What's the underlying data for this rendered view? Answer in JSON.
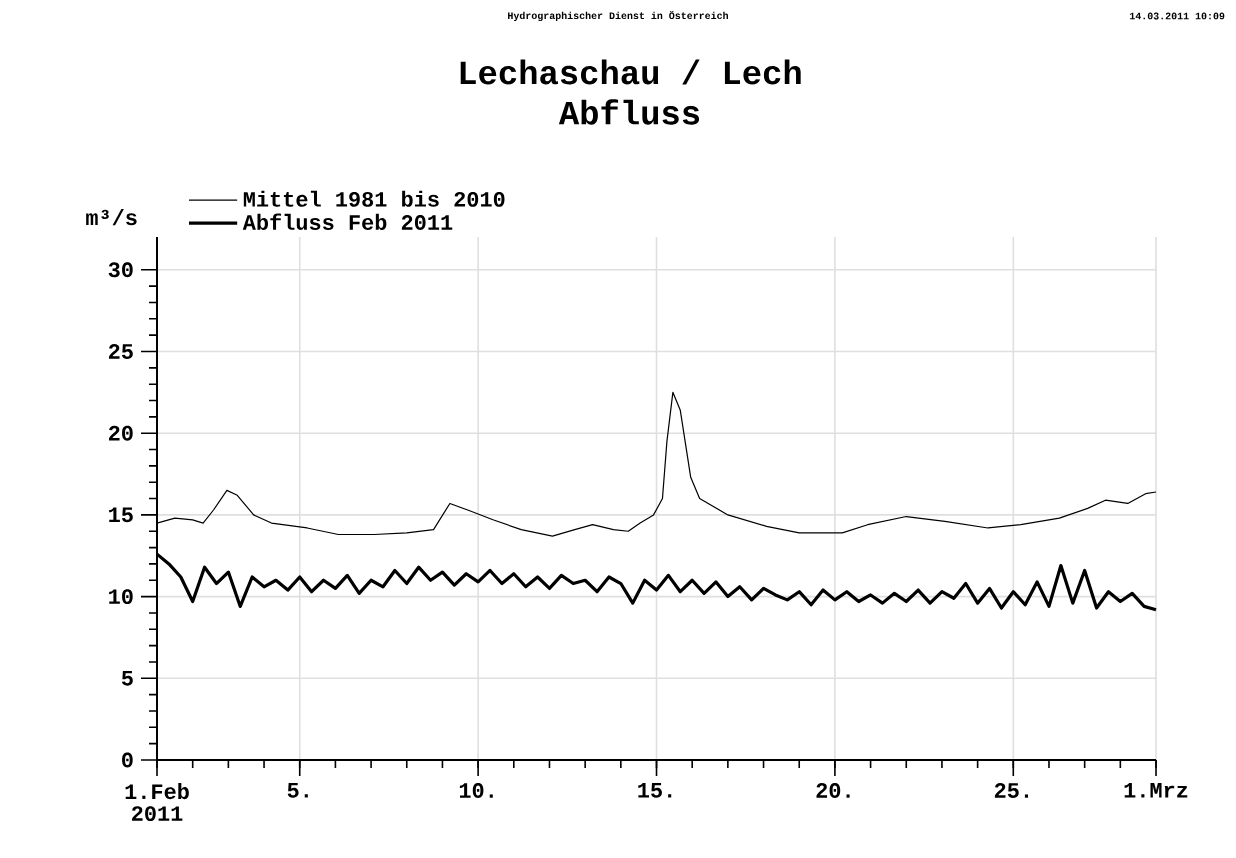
{
  "chart_data": {
    "type": "line",
    "title": "Lechaschau / Lech",
    "subtitle": "Abfluss",
    "ylabel": "m³/s",
    "annotations": [
      "Hydrographischer Dienst in Österreich",
      "14.03.2011 10:09"
    ],
    "xlim": [
      "2011-02-01",
      "2011-03-01"
    ],
    "xticks": [
      {
        "value": "2011-02-01",
        "label": "1.Feb 2011"
      },
      {
        "value": "2011-02-05",
        "label": "5."
      },
      {
        "value": "2011-02-10",
        "label": "10."
      },
      {
        "value": "2011-02-15",
        "label": "15."
      },
      {
        "value": "2011-02-20",
        "label": "20."
      },
      {
        "value": "2011-02-25",
        "label": "25."
      },
      {
        "value": "2011-03-01",
        "label": "1.Mrz"
      }
    ],
    "ylim": [
      0,
      32
    ],
    "yticks": [
      0,
      5,
      10,
      15,
      20,
      25,
      30
    ],
    "grid": true,
    "legend": "top left",
    "marker": "none",
    "line_style": "solid",
    "series": [
      {
        "name": "Mittel 1981 bis 2010",
        "color": "#000000",
        "x": [
          "2011-02-01T00:00",
          "2011-02-01T12:00",
          "2011-02-02T00:00",
          "2011-02-02T07:00",
          "2011-02-02T14:00",
          "2011-02-02T23:00",
          "2011-02-03T06:00",
          "2011-02-03T17:00",
          "2011-02-04T05:00",
          "2011-02-05T05:00",
          "2011-02-06T02:00",
          "2011-02-07T02:00",
          "2011-02-08T00:00",
          "2011-02-08T18:00",
          "2011-02-09T05:00",
          "2011-02-09T17:00",
          "2011-02-10T10:00",
          "2011-02-11T05:00",
          "2011-02-12T02:00",
          "2011-02-12T17:00",
          "2011-02-13T05:00",
          "2011-02-13T19:00",
          "2011-02-14T05:00",
          "2011-02-14T13:00",
          "2011-02-14T22:00",
          "2011-02-15T04:00",
          "2011-02-15T07:00",
          "2011-02-15T11:00",
          "2011-02-15T16:00",
          "2011-02-15T23:00",
          "2011-02-16T05:00",
          "2011-02-17T00:00",
          "2011-02-18T02:00",
          "2011-02-19T00:00",
          "2011-02-20T05:00",
          "2011-02-20T22:00",
          "2011-02-22T00:00",
          "2011-02-23T02:00",
          "2011-02-24T07:00",
          "2011-02-25T05:00",
          "2011-02-26T07:00",
          "2011-02-27T02:00",
          "2011-02-27T14:00",
          "2011-02-28T05:00",
          "2011-02-28T17:00",
          "2011-03-01T00:00"
        ],
        "values": [
          14.5,
          14.8,
          14.7,
          14.5,
          15.3,
          16.5,
          16.2,
          15.0,
          14.5,
          14.2,
          13.8,
          13.8,
          13.9,
          14.1,
          15.7,
          15.3,
          14.7,
          14.1,
          13.7,
          14.1,
          14.4,
          14.1,
          14.0,
          14.5,
          15.0,
          16.0,
          19.5,
          22.5,
          21.4,
          17.3,
          16.0,
          15.0,
          14.3,
          13.9,
          13.9,
          14.4,
          14.9,
          14.6,
          14.2,
          14.4,
          14.8,
          15.4,
          15.9,
          15.7,
          16.3,
          16.4
        ]
      },
      {
        "name": "Abfluss Feb 2011",
        "color": "#000000",
        "x": [
          "2011-02-01T00:00",
          "2011-02-01T08:00",
          "2011-02-01T16:00",
          "2011-02-02T00:00",
          "2011-02-02T08:00",
          "2011-02-02T16:00",
          "2011-02-03T00:00",
          "2011-02-03T08:00",
          "2011-02-03T16:00",
          "2011-02-04T00:00",
          "2011-02-04T08:00",
          "2011-02-04T16:00",
          "2011-02-05T00:00",
          "2011-02-05T08:00",
          "2011-02-05T16:00",
          "2011-02-06T00:00",
          "2011-02-06T08:00",
          "2011-02-06T16:00",
          "2011-02-07T00:00",
          "2011-02-07T08:00",
          "2011-02-07T16:00",
          "2011-02-08T00:00",
          "2011-02-08T08:00",
          "2011-02-08T16:00",
          "2011-02-09T00:00",
          "2011-02-09T08:00",
          "2011-02-09T16:00",
          "2011-02-10T00:00",
          "2011-02-10T08:00",
          "2011-02-10T16:00",
          "2011-02-11T00:00",
          "2011-02-11T08:00",
          "2011-02-11T16:00",
          "2011-02-12T00:00",
          "2011-02-12T08:00",
          "2011-02-12T16:00",
          "2011-02-13T00:00",
          "2011-02-13T08:00",
          "2011-02-13T16:00",
          "2011-02-14T00:00",
          "2011-02-14T08:00",
          "2011-02-14T16:00",
          "2011-02-15T00:00",
          "2011-02-15T08:00",
          "2011-02-15T16:00",
          "2011-02-16T00:00",
          "2011-02-16T08:00",
          "2011-02-16T16:00",
          "2011-02-17T00:00",
          "2011-02-17T08:00",
          "2011-02-17T16:00",
          "2011-02-18T00:00",
          "2011-02-18T08:00",
          "2011-02-18T16:00",
          "2011-02-19T00:00",
          "2011-02-19T08:00",
          "2011-02-19T16:00",
          "2011-02-20T00:00",
          "2011-02-20T08:00",
          "2011-02-20T16:00",
          "2011-02-21T00:00",
          "2011-02-21T08:00",
          "2011-02-21T16:00",
          "2011-02-22T00:00",
          "2011-02-22T08:00",
          "2011-02-22T16:00",
          "2011-02-23T00:00",
          "2011-02-23T08:00",
          "2011-02-23T16:00",
          "2011-02-24T00:00",
          "2011-02-24T08:00",
          "2011-02-24T16:00",
          "2011-02-25T00:00",
          "2011-02-25T08:00",
          "2011-02-25T16:00",
          "2011-02-26T00:00",
          "2011-02-26T08:00",
          "2011-02-26T16:00",
          "2011-02-27T00:00",
          "2011-02-27T08:00",
          "2011-02-27T16:00",
          "2011-02-28T00:00",
          "2011-02-28T08:00",
          "2011-02-28T16:00",
          "2011-03-01T00:00"
        ],
        "values": [
          12.6,
          12.0,
          11.2,
          9.7,
          11.8,
          10.8,
          11.5,
          9.4,
          11.2,
          10.6,
          11.0,
          10.4,
          11.2,
          10.3,
          11.0,
          10.5,
          11.3,
          10.2,
          11.0,
          10.6,
          11.6,
          10.8,
          11.8,
          11.0,
          11.5,
          10.7,
          11.4,
          10.9,
          11.6,
          10.8,
          11.4,
          10.6,
          11.2,
          10.5,
          11.3,
          10.8,
          11.0,
          10.3,
          11.2,
          10.8,
          9.6,
          11.0,
          10.4,
          11.3,
          10.3,
          11.0,
          10.2,
          10.9,
          10.0,
          10.6,
          9.8,
          10.5,
          10.1,
          9.8,
          10.3,
          9.5,
          10.4,
          9.8,
          10.3,
          9.7,
          10.1,
          9.6,
          10.2,
          9.7,
          10.4,
          9.6,
          10.3,
          9.9,
          10.8,
          9.6,
          10.5,
          9.3,
          10.3,
          9.5,
          10.9,
          9.4,
          11.9,
          9.6,
          11.6,
          9.3,
          10.3,
          9.7,
          10.2,
          9.4,
          9.2
        ]
      }
    ]
  }
}
